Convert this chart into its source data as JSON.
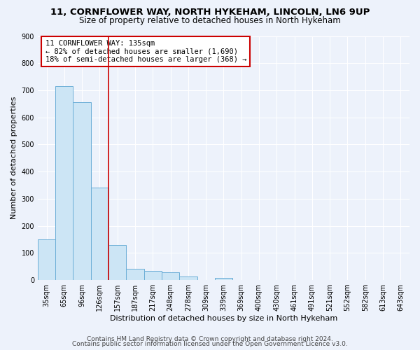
{
  "title1": "11, CORNFLOWER WAY, NORTH HYKEHAM, LINCOLN, LN6 9UP",
  "title2": "Size of property relative to detached houses in North Hykeham",
  "xlabel": "Distribution of detached houses by size in North Hykeham",
  "ylabel": "Number of detached properties",
  "categories": [
    "35sqm",
    "65sqm",
    "96sqm",
    "126sqm",
    "157sqm",
    "187sqm",
    "217sqm",
    "248sqm",
    "278sqm",
    "309sqm",
    "339sqm",
    "369sqm",
    "400sqm",
    "430sqm",
    "461sqm",
    "491sqm",
    "521sqm",
    "552sqm",
    "582sqm",
    "613sqm",
    "643sqm"
  ],
  "values": [
    150,
    715,
    655,
    340,
    130,
    42,
    35,
    28,
    13,
    0,
    8,
    0,
    0,
    0,
    0,
    0,
    0,
    0,
    0,
    0,
    0
  ],
  "bar_color": "#cce5f5",
  "bar_edge_color": "#6baed6",
  "red_line_bin": 3,
  "annotation_lines": [
    "11 CORNFLOWER WAY: 135sqm",
    "← 82% of detached houses are smaller (1,690)",
    "18% of semi-detached houses are larger (368) →"
  ],
  "ylim": [
    0,
    900
  ],
  "yticks": [
    0,
    100,
    200,
    300,
    400,
    500,
    600,
    700,
    800,
    900
  ],
  "footer1": "Contains HM Land Registry data © Crown copyright and database right 2024.",
  "footer2": "Contains public sector information licensed under the Open Government Licence v3.0.",
  "bg_color": "#edf2fb",
  "grid_color": "#ffffff",
  "title1_fontsize": 9.5,
  "title2_fontsize": 8.5,
  "axis_label_fontsize": 8,
  "tick_fontsize": 7,
  "annotation_fontsize": 7.5,
  "footer_fontsize": 6.5
}
